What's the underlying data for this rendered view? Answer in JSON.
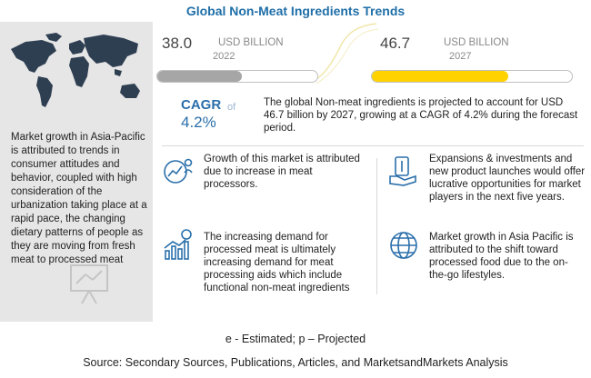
{
  "title": "Global Non-Meat Ingredients Trends",
  "left_text": "Market growth in Asia-Pacific is attributed to trends in consumer attitudes and behavior, coupled with high consideration of the urbanization taking place at a rapid pace, the changing dietary patterns of people as they are moving from fresh meat to processed meat",
  "stats": {
    "start": {
      "value": "38.0",
      "unit": "USD BILLION",
      "year": "2022",
      "level": 0.53,
      "color": "#a6a6a6"
    },
    "end": {
      "value": "46.7",
      "unit": "USD BILLION",
      "year": "2027",
      "level": 0.68,
      "color": "#ffd200"
    }
  },
  "cagr": {
    "label": "CAGR",
    "of": "of",
    "value": "4.2%"
  },
  "summary": "The global  Non-meat ingredients  is projected to account for USD 46.7 billion  by 2027, growing at a CAGR of 4.2% during the forecast period.",
  "items": [
    {
      "icon": "chart-person-icon",
      "text": "Growth of this market is attributed due  to increase in meat processors."
    },
    {
      "icon": "money-hand-icon",
      "text": "Expansions & investments and new product launches would offer lucrative opportunities for market players in the next five years."
    },
    {
      "icon": "bar-chart-dollar-icon",
      "text": "The increasing demand for processed meat is ultimately increasing demand for meat processing aids which include functional non-meat ingredients"
    },
    {
      "icon": "globe-icon",
      "text": "Market growth in Asia Pacific is attributed to the shift toward processed food due to the on-the-go lifestyles."
    }
  ],
  "footer_note": "e - Estimated; p – Projected",
  "source": "Source: Secondary Sources, Publications, Articles, and MarketsandMarkets Analysis"
}
